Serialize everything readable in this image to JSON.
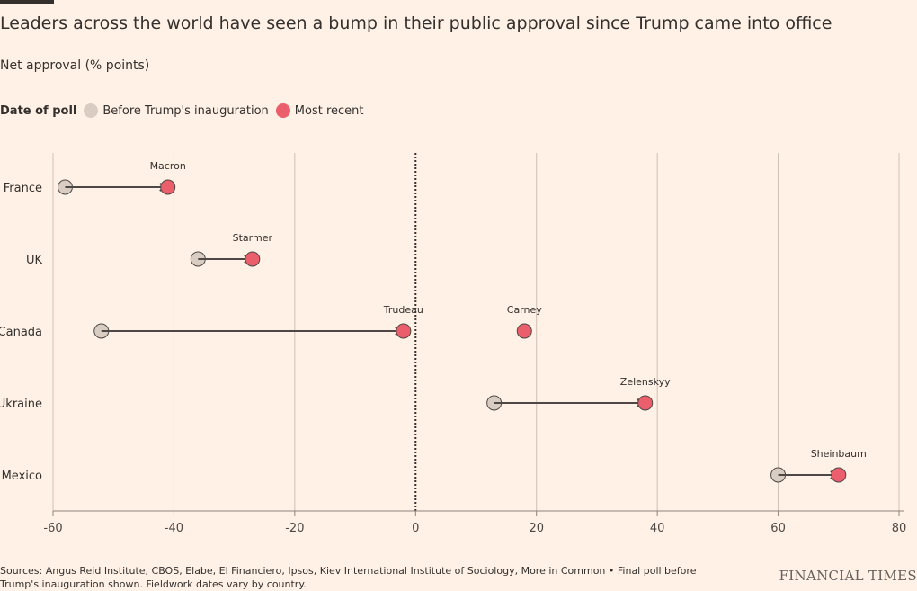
{
  "title": "Leaders across the world have seen a bump in their public approval since Trump came into office",
  "subtitle": "Net approval (% points)",
  "legend": {
    "title": "Date of poll",
    "before_label": "Before Trump's inauguration",
    "recent_label": "Most recent"
  },
  "colors": {
    "before": "#D9CCC2",
    "recent": "#EB5E6B",
    "arrow": "#4D4845",
    "grid": "#CCC1B7",
    "zero": "#33302E"
  },
  "chart_data": {
    "type": "dot-arrow",
    "title": "Leaders across the world have seen a bump in their public approval since Trump came into office",
    "ylabel": "Net approval (% points)",
    "xlim": [
      -60,
      80
    ],
    "ticks": [
      -60,
      -40,
      -20,
      0,
      20,
      40,
      60,
      80
    ],
    "tick_labels": [
      "-60",
      "-40",
      "-20",
      "0",
      "20",
      "40",
      "60",
      "80"
    ],
    "countries": [
      "France",
      "UK",
      "Canada",
      "Ukraine",
      "Mexico"
    ],
    "series": [
      {
        "name": "Before Trump's inauguration",
        "values": [
          -58,
          -36,
          -52,
          13,
          60
        ]
      },
      {
        "name": "Most recent",
        "values": [
          -41,
          -27,
          -2,
          38,
          70
        ]
      }
    ],
    "leaders": [
      {
        "country": "France",
        "leader": "Macron",
        "before": -58,
        "recent": -41
      },
      {
        "country": "UK",
        "leader": "Starmer",
        "before": -36,
        "recent": -27
      },
      {
        "country": "Canada",
        "leader": "Trudeau",
        "before": -52,
        "recent": -2
      },
      {
        "country": "Canada",
        "leader": "Carney",
        "before": null,
        "recent": 18
      },
      {
        "country": "Ukraine",
        "leader": "Zelenskyy",
        "before": 13,
        "recent": 38
      },
      {
        "country": "Mexico",
        "leader": "Sheinbaum",
        "before": 60,
        "recent": 70
      }
    ]
  },
  "footer": {
    "sources": "Sources: Angus Reid Institute, CBOS, Elabe, El Financiero, Ipsos, Kiev International Institute of Sociology, More in Common • Final poll before Trump's inauguration shown. Fieldwork dates vary by country.",
    "brand": "FINANCIAL TIMES"
  }
}
